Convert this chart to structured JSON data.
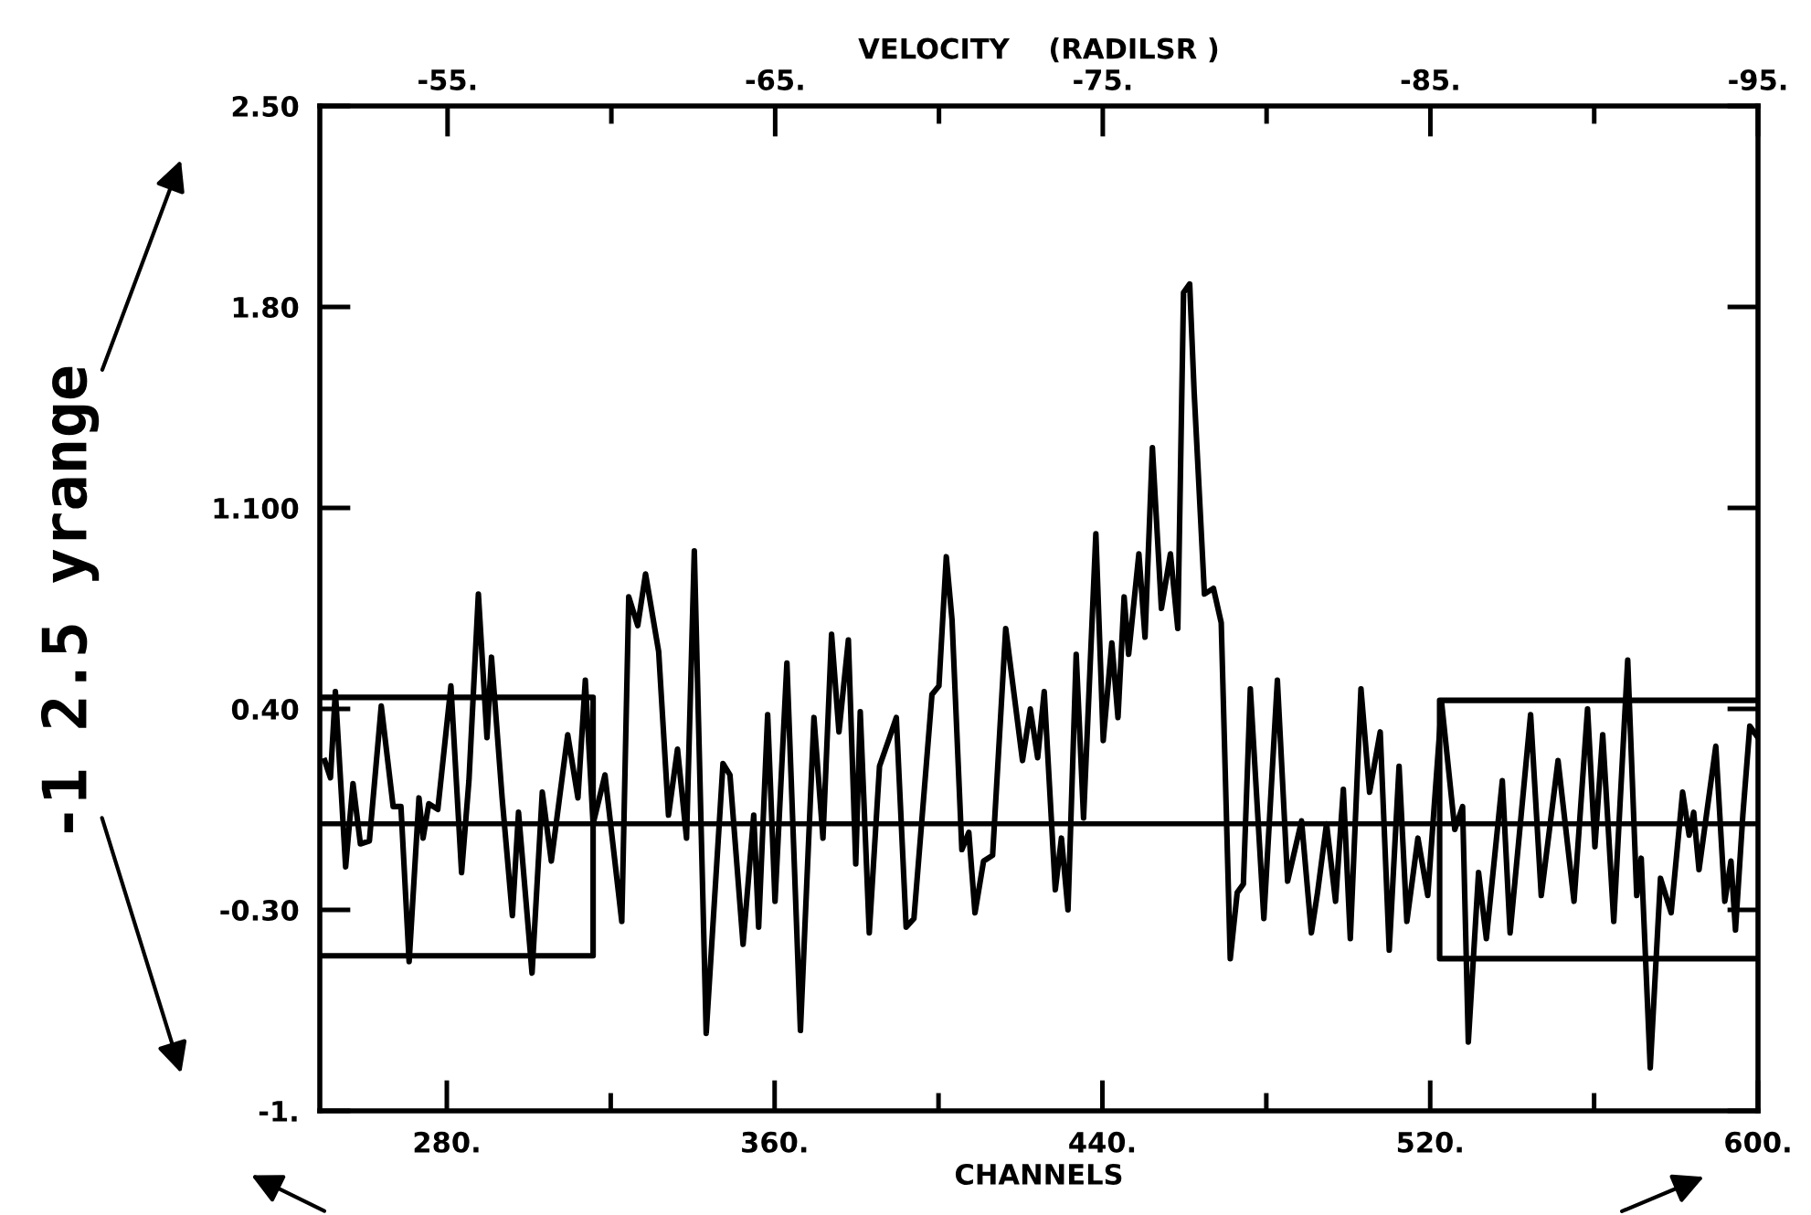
{
  "chart_data": {
    "type": "line",
    "xlabel": "CHANNELS",
    "x2label": "VELOCITY    (RADILSR )",
    "annotations": [
      "-1 2.5 yrange"
    ],
    "xlim": [
      249,
      600
    ],
    "xticks": [
      {
        "value": 280,
        "label": "280."
      },
      {
        "value": 320,
        "label": null
      },
      {
        "value": 360,
        "label": "360."
      },
      {
        "value": 400,
        "label": null
      },
      {
        "value": 440,
        "label": "440."
      },
      {
        "value": 480,
        "label": null
      },
      {
        "value": 520,
        "label": "520."
      },
      {
        "value": 560,
        "label": null
      },
      {
        "value": 600,
        "label": "600."
      }
    ],
    "x2lim": [
      -51.1,
      -95
    ],
    "x2ticks": [
      {
        "value": -55,
        "label": "-55."
      },
      {
        "value": -60,
        "label": null
      },
      {
        "value": -65,
        "label": "-65."
      },
      {
        "value": -70,
        "label": null
      },
      {
        "value": -75,
        "label": "-75."
      },
      {
        "value": -80,
        "label": null
      },
      {
        "value": -85,
        "label": "-85."
      },
      {
        "value": -90,
        "label": null
      },
      {
        "value": -95,
        "label": "-95."
      }
    ],
    "ylim": [
      -1,
      2.5
    ],
    "yticks": [
      {
        "value": -1,
        "label": "-1."
      },
      {
        "value": -0.3,
        "label": "-0.30"
      },
      {
        "value": 0.4,
        "label": "0.40"
      },
      {
        "value": 1.1,
        "label": "1.100"
      },
      {
        "value": 1.8,
        "label": "1.80"
      },
      {
        "value": 2.5,
        "label": "2.50"
      }
    ],
    "grid": false,
    "legend": false,
    "marker": "none",
    "line_style": "solid",
    "ref_lines": [
      {
        "axis": "y",
        "value": 0,
        "label": null,
        "color": "#000000"
      }
    ],
    "series": [
      {
        "color": "#000000",
        "x": [
          250.2,
          251.6,
          252.8,
          255.3,
          257.1,
          258.9,
          261.1,
          264.0,
          266.9,
          268.8,
          270.8,
          273.2,
          274.2,
          275.6,
          277.8,
          281.0,
          283.6,
          285.4,
          287.7,
          289.8,
          290.9,
          293.5,
          296.0,
          297.5,
          300.8,
          303.3,
          305.5,
          309.5,
          312.0,
          313.8,
          315.7,
          318.6,
          322.7,
          324.4,
          326.6,
          328.5,
          331.7,
          334.1,
          336.3,
          338.5,
          340.4,
          343.3,
          347.4,
          349.1,
          352.3,
          354.9,
          356.1,
          358.3,
          360.1,
          363.0,
          366.3,
          369.6,
          371.8,
          373.9,
          375.7,
          378.0,
          379.8,
          380.9,
          383.1,
          385.6,
          387.8,
          389.7,
          392.1,
          394.0,
          398.4,
          400.1,
          401.9,
          403.3,
          405.7,
          407.4,
          408.9,
          411.0,
          413.2,
          416.4,
          420.5,
          422.4,
          424.2,
          425.8,
          428.5,
          430.0,
          431.6,
          433.6,
          435.4,
          438.4,
          440.2,
          442.3,
          443.8,
          445.3,
          446.4,
          448.9,
          450.4,
          452.2,
          454.4,
          456.6,
          458.4,
          459.8,
          461.3,
          462.4,
          464.9,
          467.1,
          469.0,
          471.2,
          472.9,
          474.4,
          476.1,
          479.4,
          482.7,
          485.2,
          488.6,
          491.0,
          492.5,
          494.7,
          496.9,
          498.8,
          500.5,
          503.1,
          505.2,
          507.8,
          510.0,
          512.4,
          514.3,
          517.0,
          519.4,
          522.8,
          526.0,
          527.9,
          529.3,
          531.8,
          533.7,
          537.6,
          539.5,
          544.5,
          547.1,
          551.2,
          555.1,
          558.4,
          560.2,
          562.1,
          564.8,
          568.2,
          570.4,
          571.5,
          573.7,
          576.2,
          578.8,
          581.6,
          583.2,
          584.3,
          585.6,
          589.7,
          591.9,
          593.4,
          594.5,
          596.3,
          598.0,
          600.0
        ],
        "values": [
          0.22,
          0.16,
          0.46,
          -0.15,
          0.14,
          -0.07,
          -0.06,
          0.41,
          0.06,
          0.06,
          -0.48,
          0.09,
          -0.05,
          0.07,
          0.05,
          0.48,
          -0.17,
          0.15,
          0.8,
          0.3,
          0.58,
          0.09,
          -0.32,
          0.04,
          -0.52,
          0.11,
          -0.13,
          0.31,
          0.09,
          0.5,
          0.0,
          0.17,
          -0.34,
          0.79,
          0.69,
          0.87,
          0.6,
          0.03,
          0.26,
          -0.05,
          0.95,
          -0.73,
          0.21,
          0.17,
          -0.42,
          0.03,
          -0.36,
          0.38,
          -0.27,
          0.56,
          -0.72,
          0.37,
          -0.05,
          0.66,
          0.32,
          0.64,
          -0.14,
          0.39,
          -0.38,
          0.2,
          0.29,
          0.37,
          -0.36,
          -0.33,
          0.45,
          0.48,
          0.93,
          0.71,
          -0.09,
          -0.03,
          -0.31,
          -0.13,
          -0.11,
          0.68,
          0.22,
          0.4,
          0.23,
          0.46,
          -0.23,
          -0.05,
          -0.3,
          0.59,
          0.02,
          1.01,
          0.29,
          0.63,
          0.37,
          0.79,
          0.59,
          0.94,
          0.65,
          1.31,
          0.75,
          0.94,
          0.68,
          1.85,
          1.88,
          1.5,
          0.8,
          0.82,
          0.7,
          -0.47,
          -0.24,
          -0.21,
          0.47,
          -0.33,
          0.5,
          -0.2,
          0.01,
          -0.38,
          -0.24,
          0.0,
          -0.27,
          0.12,
          -0.4,
          0.47,
          0.11,
          0.32,
          -0.44,
          0.2,
          -0.34,
          -0.05,
          -0.25,
          0.42,
          -0.02,
          0.06,
          -0.76,
          -0.17,
          -0.4,
          0.15,
          -0.38,
          0.38,
          -0.25,
          0.22,
          -0.27,
          0.4,
          -0.08,
          0.31,
          -0.34,
          0.57,
          -0.25,
          -0.12,
          -0.85,
          -0.19,
          -0.31,
          0.11,
          -0.04,
          0.04,
          -0.16,
          0.27,
          -0.27,
          -0.13,
          -0.37,
          0.03,
          0.34,
          0.3
        ]
      },
      {
        "color": "#000000",
        "x": [
          249,
          315.7,
          315.7,
          249
        ],
        "values": [
          0.44,
          0.44,
          -0.46,
          -0.46
        ]
      },
      {
        "color": "#000000",
        "x": [
          600,
          522.3,
          522.3,
          600
        ],
        "values": [
          0.43,
          0.43,
          -0.47,
          -0.47
        ]
      }
    ]
  }
}
